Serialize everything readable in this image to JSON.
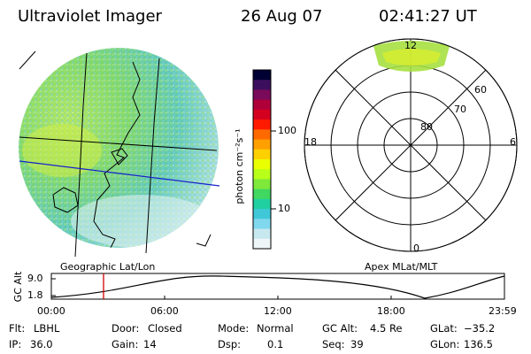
{
  "header": {
    "instrument": "Ultraviolet Imager",
    "date": "26 Aug 07",
    "time": "02:41:27 UT"
  },
  "colorbar": {
    "ticks": [
      "100",
      "10"
    ],
    "unit_label": "photon cm⁻²s⁻¹",
    "colors": [
      "#000033",
      "#3b0f5e",
      "#7a0a5a",
      "#b0003a",
      "#d4001f",
      "#ff1a00",
      "#ff6a00",
      "#ffa000",
      "#ffd000",
      "#eaff00",
      "#b8ff1a",
      "#7fe83a",
      "#40d860",
      "#20d0a0",
      "#40c8d8",
      "#80d8ee",
      "#c8e8f0",
      "#eef6f8"
    ]
  },
  "map_labels": {
    "left": "Geographic Lat/Lon",
    "right": "Apex MLat/MLT"
  },
  "polar": {
    "lat_labels": [
      "80",
      "70",
      "60"
    ],
    "mlt_labels": {
      "top": "12",
      "left": "18",
      "right": "6",
      "bottom": "0"
    }
  },
  "timeline": {
    "ylabel": "GC Alt",
    "yticks": [
      "9.0",
      "1.8"
    ],
    "xticks": [
      "00:00",
      "06:00",
      "12:00",
      "18:00",
      "23:59"
    ]
  },
  "status": {
    "row1": [
      {
        "key": "Flt:",
        "value": "LBHL"
      },
      {
        "key": "Door:",
        "value": "Closed"
      },
      {
        "key": "Mode:",
        "value": "Normal"
      },
      {
        "key": "GC Alt:",
        "value": "4.5 Re"
      },
      {
        "key": "GLat:",
        "value": "−35.2"
      }
    ],
    "row2": [
      {
        "key": "IP:",
        "value": "36.0"
      },
      {
        "key": "Gain:",
        "value": "14"
      },
      {
        "key": "Dsp:",
        "value": "0.1"
      },
      {
        "key": "Seq:",
        "value": "39"
      },
      {
        "key": "GLon:",
        "value": "136.5"
      }
    ]
  }
}
